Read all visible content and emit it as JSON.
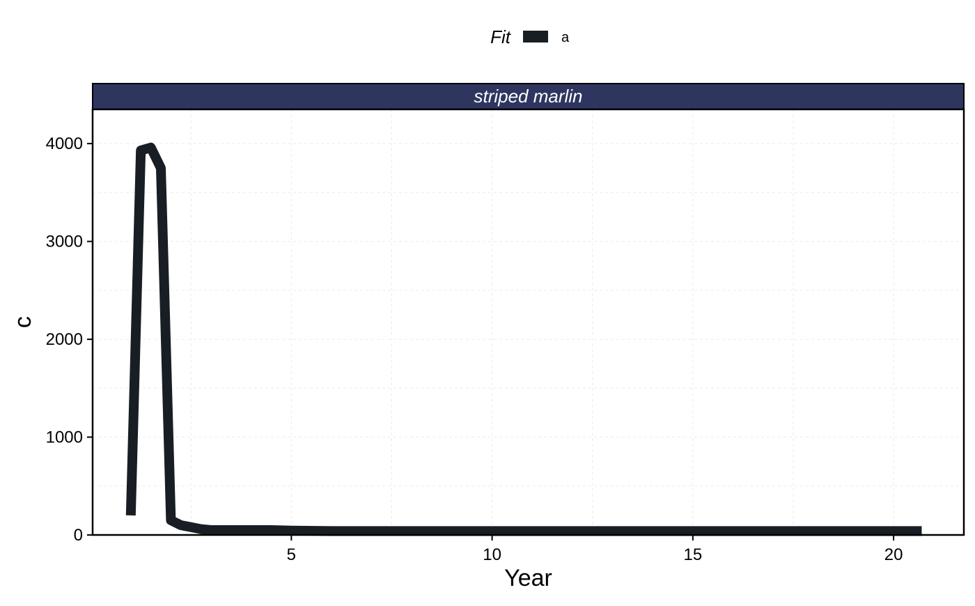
{
  "chart_data": {
    "type": "line",
    "facet": "striped marlin",
    "xlabel": "Year",
    "ylabel": "c",
    "xlim": [
      0.05,
      21.75
    ],
    "ylim": [
      0,
      4350
    ],
    "x_ticks": [
      5,
      10,
      15,
      20
    ],
    "y_ticks": [
      0,
      1000,
      2000,
      3000,
      4000
    ],
    "grid": true,
    "legend": {
      "title": "Fit",
      "position": "top",
      "entries": [
        "a"
      ]
    },
    "colors": {
      "series": "#181e23",
      "strip_fill": "#2e3660",
      "strip_text": "#ffffff",
      "grid": "#ebebeb"
    },
    "series": [
      {
        "name": "a",
        "x": [
          1.0,
          1.25,
          1.5,
          1.75,
          2.0,
          2.25,
          2.5,
          2.75,
          3.0,
          3.5,
          4.0,
          4.5,
          5.0,
          6.0,
          7.0,
          8.0,
          9.0,
          10.0,
          11.0,
          12.0,
          13.0,
          14.0,
          15.0,
          16.0,
          17.0,
          18.0,
          19.0,
          20.0,
          20.7
        ],
        "values": [
          200,
          3930,
          3960,
          3750,
          150,
          100,
          80,
          60,
          50,
          50,
          50,
          50,
          45,
          40,
          40,
          40,
          40,
          40,
          40,
          40,
          40,
          40,
          40,
          40,
          40,
          40,
          40,
          40,
          40
        ]
      }
    ]
  }
}
